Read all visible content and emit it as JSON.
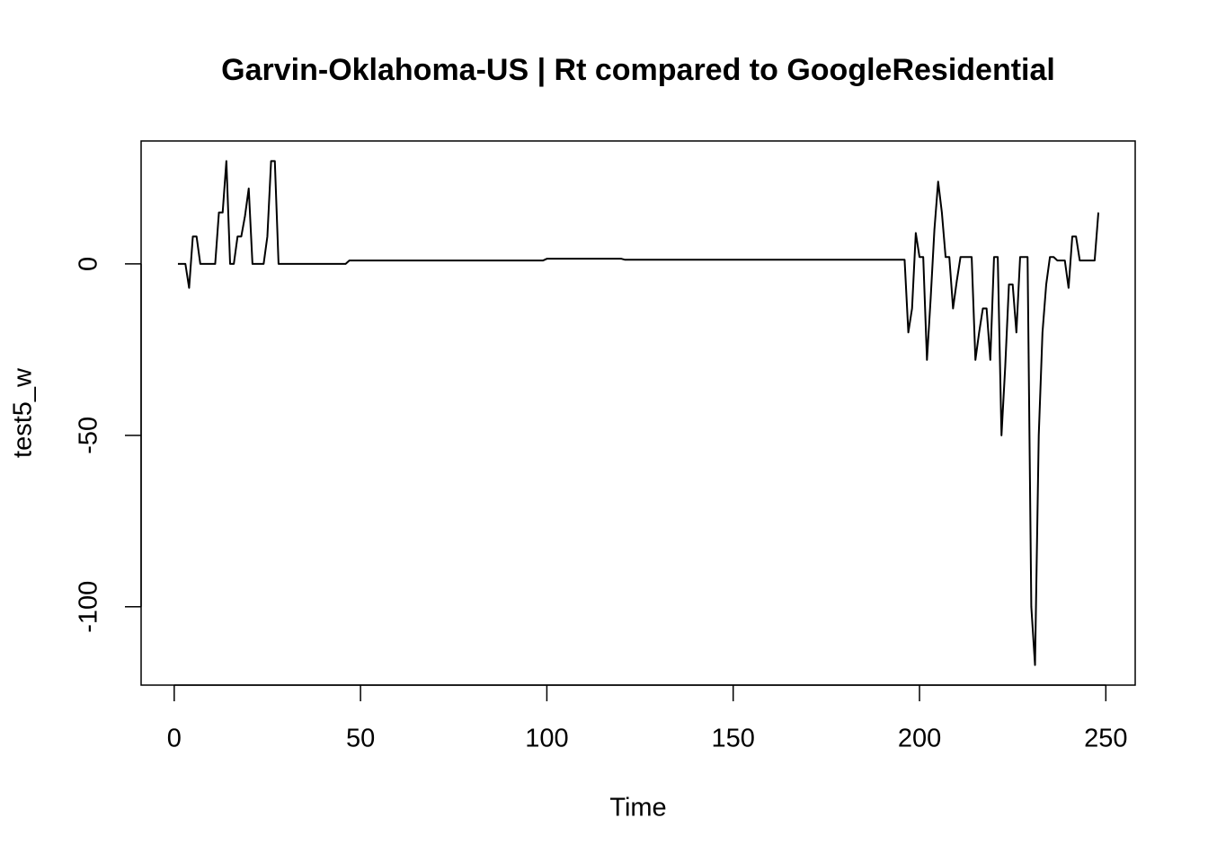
{
  "chart_data": {
    "type": "line",
    "title": "Garvin-Oklahoma-US | Rt compared to GoogleResidential",
    "x_label": "Time",
    "y_label": "test5_w",
    "x": [
      1,
      2,
      3,
      4,
      5,
      6,
      7,
      8,
      9,
      10,
      11,
      12,
      13,
      14,
      15,
      16,
      17,
      18,
      19,
      20,
      21,
      22,
      23,
      24,
      25,
      26,
      27,
      28,
      29,
      30,
      31,
      32,
      33,
      34,
      35,
      36,
      37,
      38,
      39,
      40,
      41,
      42,
      43,
      44,
      45,
      46,
      47,
      48,
      49,
      50,
      51,
      52,
      53,
      54,
      55,
      56,
      57,
      58,
      59,
      60,
      61,
      62,
      63,
      64,
      65,
      66,
      67,
      68,
      69,
      70,
      71,
      72,
      73,
      74,
      75,
      76,
      77,
      78,
      79,
      80,
      81,
      82,
      83,
      84,
      85,
      86,
      87,
      88,
      89,
      90,
      91,
      92,
      93,
      94,
      95,
      96,
      97,
      98,
      99,
      100,
      101,
      102,
      103,
      104,
      105,
      106,
      107,
      108,
      109,
      110,
      111,
      112,
      113,
      114,
      115,
      116,
      117,
      118,
      119,
      120,
      121,
      122,
      123,
      124,
      125,
      126,
      127,
      128,
      129,
      130,
      131,
      132,
      133,
      134,
      135,
      136,
      137,
      138,
      139,
      140,
      141,
      142,
      143,
      144,
      145,
      146,
      147,
      148,
      149,
      150,
      151,
      152,
      153,
      154,
      155,
      156,
      157,
      158,
      159,
      160,
      161,
      162,
      163,
      164,
      165,
      166,
      167,
      168,
      169,
      170,
      171,
      172,
      173,
      174,
      175,
      176,
      177,
      178,
      179,
      180,
      181,
      182,
      183,
      184,
      185,
      186,
      187,
      188,
      189,
      190,
      191,
      192,
      193,
      194,
      195,
      196,
      197,
      198,
      199,
      200,
      201,
      202,
      203,
      204,
      205,
      206,
      207,
      208,
      209,
      210,
      211,
      212,
      213,
      214,
      215,
      216,
      217,
      218,
      219,
      220,
      221,
      222,
      223,
      224,
      225,
      226,
      227,
      228,
      229,
      230,
      231,
      232,
      233,
      234,
      235,
      236,
      237,
      238,
      239,
      240,
      241,
      242,
      243,
      244,
      245,
      246,
      247,
      248
    ],
    "series": [
      {
        "color": "#000000",
        "values": [
          0,
          0,
          0,
          -7,
          8,
          8,
          0,
          0,
          0,
          0,
          0,
          15,
          15,
          30,
          0,
          0,
          8,
          8,
          14,
          22,
          0,
          0,
          0,
          0,
          8,
          30,
          30,
          0,
          0,
          0,
          0,
          0,
          0,
          0,
          0,
          0,
          0,
          0,
          0,
          0,
          0,
          0,
          0,
          0,
          0,
          0,
          1,
          1,
          1,
          1,
          1,
          1,
          1,
          1,
          1,
          1,
          1,
          1,
          1,
          1,
          1,
          1,
          1,
          1,
          1,
          1,
          1,
          1,
          1,
          1,
          1,
          1,
          1,
          1,
          1,
          1,
          1,
          1,
          1,
          1,
          1,
          1,
          1,
          1,
          1,
          1,
          1,
          1,
          1,
          1,
          1,
          1,
          1,
          1,
          1,
          1,
          1,
          1,
          1,
          1.5,
          1.5,
          1.5,
          1.5,
          1.5,
          1.5,
          1.5,
          1.5,
          1.5,
          1.5,
          1.5,
          1.5,
          1.5,
          1.5,
          1.5,
          1.5,
          1.5,
          1.5,
          1.5,
          1.5,
          1.5,
          1.2,
          1.2,
          1.2,
          1.2,
          1.2,
          1.2,
          1.2,
          1.2,
          1.2,
          1.2,
          1.2,
          1.2,
          1.2,
          1.2,
          1.2,
          1.2,
          1.2,
          1.2,
          1.2,
          1.2,
          1.2,
          1.2,
          1.2,
          1.2,
          1.2,
          1.2,
          1.2,
          1.2,
          1.2,
          1.2,
          1.2,
          1.2,
          1.2,
          1.2,
          1.2,
          1.2,
          1.2,
          1.2,
          1.2,
          1.2,
          1.2,
          1.2,
          1.2,
          1.2,
          1.2,
          1.2,
          1.2,
          1.2,
          1.2,
          1.2,
          1.2,
          1.2,
          1.2,
          1.2,
          1.2,
          1.2,
          1.2,
          1.2,
          1.2,
          1.2,
          1.2,
          1.2,
          1.2,
          1.2,
          1.2,
          1.2,
          1.2,
          1.2,
          1.2,
          1.2,
          1.2,
          1.2,
          1.2,
          1.2,
          1.2,
          1.2,
          -20,
          -13,
          9,
          2,
          2,
          -28,
          -10,
          10,
          24,
          15,
          2,
          2,
          -13,
          -5,
          2,
          2,
          2,
          2,
          -28,
          -20,
          -13,
          -13,
          -28,
          2,
          2,
          -50,
          -30,
          -6,
          -6,
          -20,
          2,
          2,
          2,
          -100,
          -117,
          -50,
          -20,
          -6,
          2,
          2,
          1,
          1,
          1,
          -7,
          8,
          8,
          1,
          1,
          1,
          1,
          1,
          15
        ]
      }
    ],
    "xlim": [
      -8.88,
      257.88
    ],
    "xticks": [
      0,
      50,
      100,
      150,
      200,
      250
    ],
    "ylim": [
      -122.85,
      35.85
    ],
    "yticks": [
      -100,
      -50,
      0
    ],
    "grid": false
  }
}
